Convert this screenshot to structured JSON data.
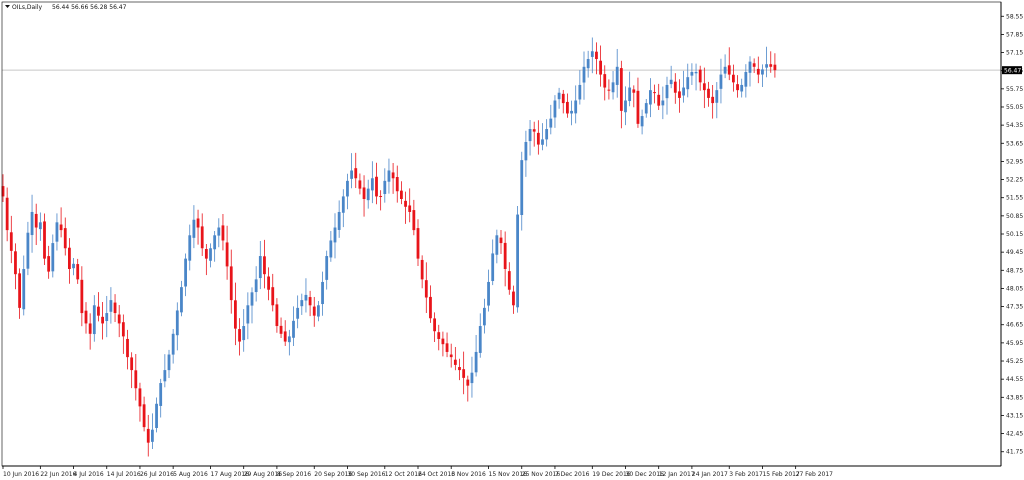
{
  "header": {
    "symbol": "OILs,Daily",
    "ohlc": "56.44 56.66 56.28 56.47"
  },
  "colors": {
    "up": "#4a86c8",
    "down": "#e8141a",
    "wick": "#8a8a8a",
    "price_line": "#c8c8c8",
    "price_badge": "#000000",
    "price_badge_text": "#ffffff",
    "axis": "#000000",
    "background": "#ffffff"
  },
  "chart_data": {
    "type": "candlestick",
    "ylim": [
      41.2,
      59.1
    ],
    "y_ticks": [
      "58.55",
      "57.85",
      "57.15",
      "56.45",
      "55.75",
      "55.05",
      "54.35",
      "53.65",
      "52.95",
      "52.25",
      "51.55",
      "50.85",
      "50.15",
      "49.45",
      "48.75",
      "48.05",
      "47.35",
      "46.65",
      "45.95",
      "45.25",
      "44.55",
      "43.85",
      "43.15",
      "42.45",
      "41.75"
    ],
    "x_ticks": [
      {
        "label": "10 Jun 2016",
        "index": 0
      },
      {
        "label": "22 Jun 2016",
        "index": 9
      },
      {
        "label": "4 Jul 2016",
        "index": 17
      },
      {
        "label": "14 Jul 2016",
        "index": 25
      },
      {
        "label": "26 Jul 2016",
        "index": 33
      },
      {
        "label": "5 Aug 2016",
        "index": 41
      },
      {
        "label": "17 Aug 2016",
        "index": 50
      },
      {
        "label": "29 Aug 2016",
        "index": 58
      },
      {
        "label": "8 Sep 2016",
        "index": 66
      },
      {
        "label": "20 Sep 2016",
        "index": 75
      },
      {
        "label": "30 Sep 2016",
        "index": 83
      },
      {
        "label": "12 Oct 2016",
        "index": 92
      },
      {
        "label": "24 Oct 2016",
        "index": 100
      },
      {
        "label": "3 Nov 2016",
        "index": 108
      },
      {
        "label": "15 Nov 2016",
        "index": 117
      },
      {
        "label": "25 Nov 2016",
        "index": 125
      },
      {
        "label": "7 Dec 2016",
        "index": 133
      },
      {
        "label": "19 Dec 2016",
        "index": 142
      },
      {
        "label": "30 Dec 2016",
        "index": 150
      },
      {
        "label": "12 Jan 2017",
        "index": 158
      },
      {
        "label": "24 Jan 2017",
        "index": 166
      },
      {
        "label": "3 Feb 2017",
        "index": 175
      },
      {
        "label": "15 Feb 2017",
        "index": 183
      },
      {
        "label": "27 Feb 2017",
        "index": 191
      }
    ],
    "current_price": "56.47",
    "closes": [
      51.6,
      50.3,
      49.5,
      48.6,
      47.3,
      48.8,
      50.2,
      51.0,
      50.4,
      50.6,
      49.2,
      48.7,
      49.8,
      50.6,
      50.3,
      49.6,
      48.8,
      49.0,
      48.4,
      47.1,
      46.7,
      46.3,
      47.4,
      47.0,
      46.7,
      47.1,
      47.6,
      47.1,
      46.7,
      46.2,
      45.4,
      44.9,
      44.2,
      43.5,
      42.7,
      42.1,
      42.6,
      43.6,
      44.4,
      44.9,
      45.5,
      46.3,
      47.2,
      48.1,
      49.2,
      50.1,
      50.7,
      50.4,
      49.6,
      49.2,
      49.6,
      50.1,
      50.4,
      49.9,
      48.9,
      47.6,
      46.5,
      46.0,
      46.6,
      47.4,
      47.9,
      48.4,
      49.3,
      48.6,
      48.0,
      47.4,
      46.6,
      46.3,
      46.0,
      46.2,
      46.8,
      47.3,
      47.6,
      47.8,
      47.4,
      47.0,
      47.4,
      48.3,
      49.3,
      49.9,
      50.4,
      51.0,
      51.6,
      52.2,
      52.6,
      52.3,
      51.9,
      51.5,
      51.9,
      52.3,
      51.6,
      51.6,
      52.2,
      52.6,
      52.3,
      51.8,
      51.5,
      51.2,
      51.0,
      50.3,
      49.2,
      48.4,
      47.7,
      46.9,
      46.4,
      46.1,
      45.9,
      45.6,
      45.4,
      45.1,
      44.9,
      44.6,
      44.3,
      44.8,
      45.6,
      46.6,
      47.3,
      48.3,
      49.4,
      50.1,
      49.8,
      48.8,
      48.0,
      47.4,
      50.9,
      53.0,
      53.7,
      54.2,
      54.1,
      53.6,
      53.8,
      54.2,
      54.6,
      55.3,
      55.6,
      55.2,
      54.8,
      54.9,
      55.3,
      55.9,
      56.6,
      56.9,
      57.2,
      56.9,
      56.3,
      55.8,
      55.7,
      56.0,
      56.6,
      54.9,
      55.3,
      55.8,
      55.6,
      54.4,
      54.7,
      55.2,
      55.7,
      55.6,
      55.1,
      55.3,
      55.9,
      56.1,
      55.6,
      55.4,
      55.8,
      56.2,
      56.4,
      56.4,
      56.0,
      55.7,
      55.4,
      55.2,
      55.7,
      56.3,
      56.6,
      56.3,
      56.0,
      55.7,
      55.9,
      56.4,
      56.8,
      56.6,
      56.3,
      56.5,
      56.7,
      56.6,
      56.47
    ]
  }
}
